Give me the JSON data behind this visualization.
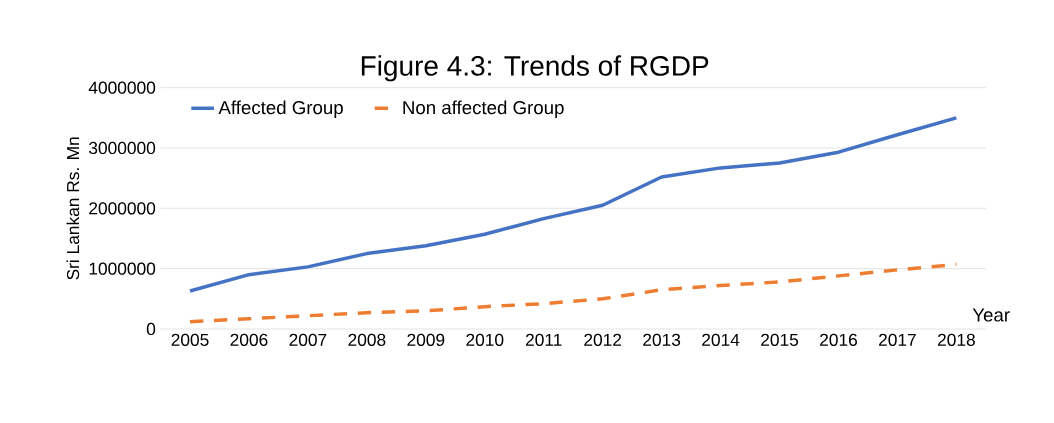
{
  "chart_data": {
    "type": "line",
    "title": "Figure 4.3:        Trends of RGDP",
    "xlabel": "Year",
    "ylabel": "Sri Lankan Rs. Mn",
    "categories": [
      "2005",
      "2006",
      "2007",
      "2008",
      "2009",
      "2010",
      "2011",
      "2012",
      "2013",
      "2014",
      "2015",
      "2016",
      "2017",
      "2018"
    ],
    "series": [
      {
        "name": "Affected Group",
        "color": "#4472c4",
        "line_style": "solid",
        "values": [
          630000,
          900000,
          1030000,
          1250000,
          1380000,
          1570000,
          1830000,
          2050000,
          2520000,
          2670000,
          2750000,
          2930000,
          3220000,
          3500000
        ]
      },
      {
        "name": "Non affected Group",
        "color": "#ed7d31",
        "line_style": "dashed",
        "values": [
          120000,
          170000,
          220000,
          270000,
          300000,
          370000,
          420000,
          500000,
          650000,
          720000,
          780000,
          880000,
          980000,
          1070000
        ]
      }
    ],
    "ylim": [
      0,
      4000000
    ],
    "yticks": [
      0,
      1000000,
      2000000,
      3000000,
      4000000
    ],
    "grid": "y",
    "legend": "top left",
    "marker": "none"
  }
}
